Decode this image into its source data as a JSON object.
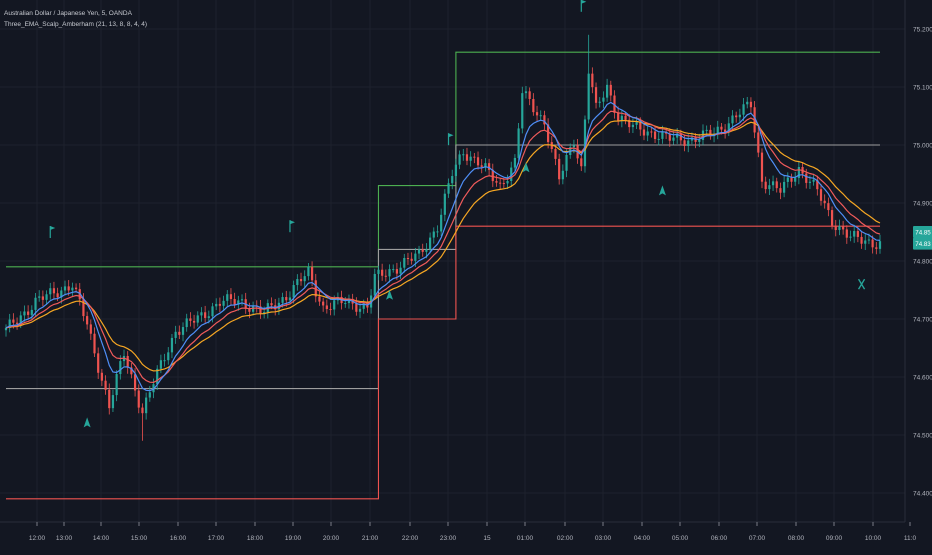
{
  "header": {
    "symbol_line": "Australian Dollar / Japanese Yen, 5, OANDA",
    "indicator_line": "Three_EMA_Scalp_Amberham (21, 13, 8, 8, 4, 4)"
  },
  "colors": {
    "background": "#131722",
    "grid": "#1e222d",
    "axis_text": "#b2b5be",
    "bull": "#26a69a",
    "bear": "#ef5350",
    "ema_fast": "#4f8ff7",
    "ema_mid": "#f05b5b",
    "ema_slow": "#f5a623",
    "level_upper": "#4caf50",
    "level_mid": "#9e9e9e",
    "level_lower": "#ef5350",
    "price_badge": "#26a69a"
  },
  "price_badges": [
    "74.85",
    "74.83"
  ],
  "chart_data": {
    "type": "candlestick",
    "title": "Australian Dollar / Japanese Yen, 5, OANDA",
    "ylim": [
      74.35,
      75.25
    ],
    "y_ticks": [
      74.4,
      74.5,
      74.6,
      74.7,
      74.8,
      74.9,
      75.0,
      75.1,
      75.2
    ],
    "x_tick_labels": [
      "12:00",
      "13:00",
      "14:00",
      "15:00",
      "16:00",
      "17:00",
      "18:00",
      "19:00",
      "20:00",
      "21:00",
      "22:00",
      "23:00",
      "15",
      "01:00",
      "02:00",
      "03:00",
      "04:00",
      "05:00",
      "06:00",
      "07:00",
      "08:00",
      "09:00",
      "10:00",
      "11:0"
    ],
    "bar_count": 238,
    "key_prices": [
      [
        0,
        74.68
      ],
      [
        8,
        74.73
      ],
      [
        18,
        74.76
      ],
      [
        22,
        74.69
      ],
      [
        28,
        74.55
      ],
      [
        32,
        74.64
      ],
      [
        37,
        74.54
      ],
      [
        40,
        74.59
      ],
      [
        46,
        74.68
      ],
      [
        52,
        74.7
      ],
      [
        58,
        74.73
      ],
      [
        64,
        74.73
      ],
      [
        70,
        74.71
      ],
      [
        76,
        74.74
      ],
      [
        82,
        74.78
      ],
      [
        86,
        74.72
      ],
      [
        92,
        74.73
      ],
      [
        98,
        74.72
      ],
      [
        100,
        74.77
      ],
      [
        106,
        74.79
      ],
      [
        112,
        74.81
      ],
      [
        117,
        74.86
      ],
      [
        121,
        74.95
      ],
      [
        124,
        74.99
      ],
      [
        128,
        74.97
      ],
      [
        134,
        74.93
      ],
      [
        138,
        74.97
      ],
      [
        140,
        75.09
      ],
      [
        146,
        75.04
      ],
      [
        150,
        74.94
      ],
      [
        154,
        75.01
      ],
      [
        156,
        74.96
      ],
      [
        158,
        75.13
      ],
      [
        160,
        75.06
      ],
      [
        163,
        75.1
      ],
      [
        166,
        75.05
      ],
      [
        170,
        75.03
      ],
      [
        176,
        75.02
      ],
      [
        180,
        75.01
      ],
      [
        186,
        75.01
      ],
      [
        192,
        75.02
      ],
      [
        198,
        75.05
      ],
      [
        202,
        75.07
      ],
      [
        205,
        74.94
      ],
      [
        210,
        74.92
      ],
      [
        215,
        74.96
      ],
      [
        220,
        74.92
      ],
      [
        224,
        74.87
      ],
      [
        229,
        74.84
      ],
      [
        237,
        74.83
      ]
    ],
    "series": [
      {
        "name": "EMA 8",
        "values": "EMA(close, 8)"
      },
      {
        "name": "EMA 13",
        "values": "EMA(close, 13)"
      },
      {
        "name": "EMA 21",
        "values": "EMA(close, 21)"
      }
    ],
    "levels": [
      {
        "name": "session-high",
        "segments": [
          [
            0,
            101,
            74.79
          ],
          [
            101,
            122,
            74.93
          ],
          [
            122,
            237,
            75.16
          ]
        ]
      },
      {
        "name": "session-mid",
        "segments": [
          [
            0,
            101,
            74.58
          ],
          [
            101,
            122,
            74.82
          ],
          [
            122,
            237,
            75.0
          ]
        ]
      },
      {
        "name": "session-low",
        "segments": [
          [
            0,
            101,
            74.39
          ],
          [
            101,
            122,
            74.7
          ],
          [
            122,
            237,
            74.86
          ]
        ]
      }
    ],
    "signals": [
      {
        "bar": 12,
        "price": 74.85,
        "symbol": "flag"
      },
      {
        "bar": 77,
        "price": 74.86,
        "symbol": "flag"
      },
      {
        "bar": 120,
        "price": 75.01,
        "symbol": "flag"
      },
      {
        "bar": 156,
        "price": 75.24,
        "symbol": "flag"
      },
      {
        "bar": 22,
        "price": 74.52,
        "symbol": "arrow-up"
      },
      {
        "bar": 104,
        "price": 74.74,
        "symbol": "arrow-up"
      },
      {
        "bar": 141,
        "price": 74.96,
        "symbol": "arrow-up"
      },
      {
        "bar": 178,
        "price": 74.92,
        "symbol": "arrow-up"
      },
      {
        "bar": 232,
        "price": 74.76,
        "symbol": "cross"
      }
    ]
  }
}
